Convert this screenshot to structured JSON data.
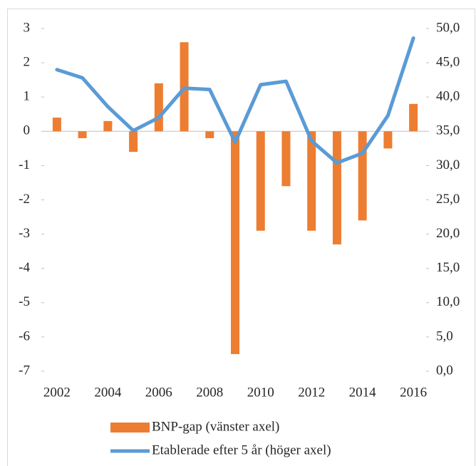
{
  "chart_data": {
    "type": "bar_line",
    "categories": [
      "2002",
      null,
      "2004",
      null,
      "2006",
      null,
      "2008",
      null,
      "2010",
      null,
      "2012",
      null,
      "2014",
      null,
      "2016"
    ],
    "series": [
      {
        "name": "BNP-gap (vänster axel)",
        "type": "bar",
        "color": "#ed7d31",
        "values": [
          0.4,
          -0.2,
          0.3,
          -0.6,
          1.4,
          2.6,
          -0.2,
          -6.5,
          -2.9,
          -1.6,
          -2.9,
          -3.3,
          -2.6,
          -0.5,
          0.8
        ]
      },
      {
        "name": "Etablerade efter 5 år (höger axel)",
        "type": "line",
        "axis": "y2",
        "color": "#5b9bd5",
        "values": [
          44.0,
          42.8,
          38.6,
          35.1,
          37.0,
          41.3,
          41.1,
          33.4,
          41.8,
          42.3,
          33.6,
          30.4,
          31.8,
          37.3,
          48.6
        ]
      }
    ],
    "ylim": [
      -7,
      3
    ],
    "yticks": [
      -7,
      -6,
      -5,
      -4,
      -3,
      -2,
      -1,
      0,
      1,
      2,
      3
    ],
    "y2lim": [
      0,
      50
    ],
    "y2ticks": [
      {
        "value": 0,
        "label": "0,0"
      },
      {
        "value": 5,
        "label": "5,0"
      },
      {
        "value": 10,
        "label": "10,0"
      },
      {
        "value": 15,
        "label": "15,0"
      },
      {
        "value": 20,
        "label": "20,0"
      },
      {
        "value": 25,
        "label": "25,0"
      },
      {
        "value": 30,
        "label": "30,0"
      },
      {
        "value": 35,
        "label": "35,0"
      },
      {
        "value": 40,
        "label": "40,0"
      },
      {
        "value": 45,
        "label": "45,0"
      },
      {
        "value": 50,
        "label": "50,0"
      }
    ],
    "grid": false,
    "legend": "bottom"
  }
}
